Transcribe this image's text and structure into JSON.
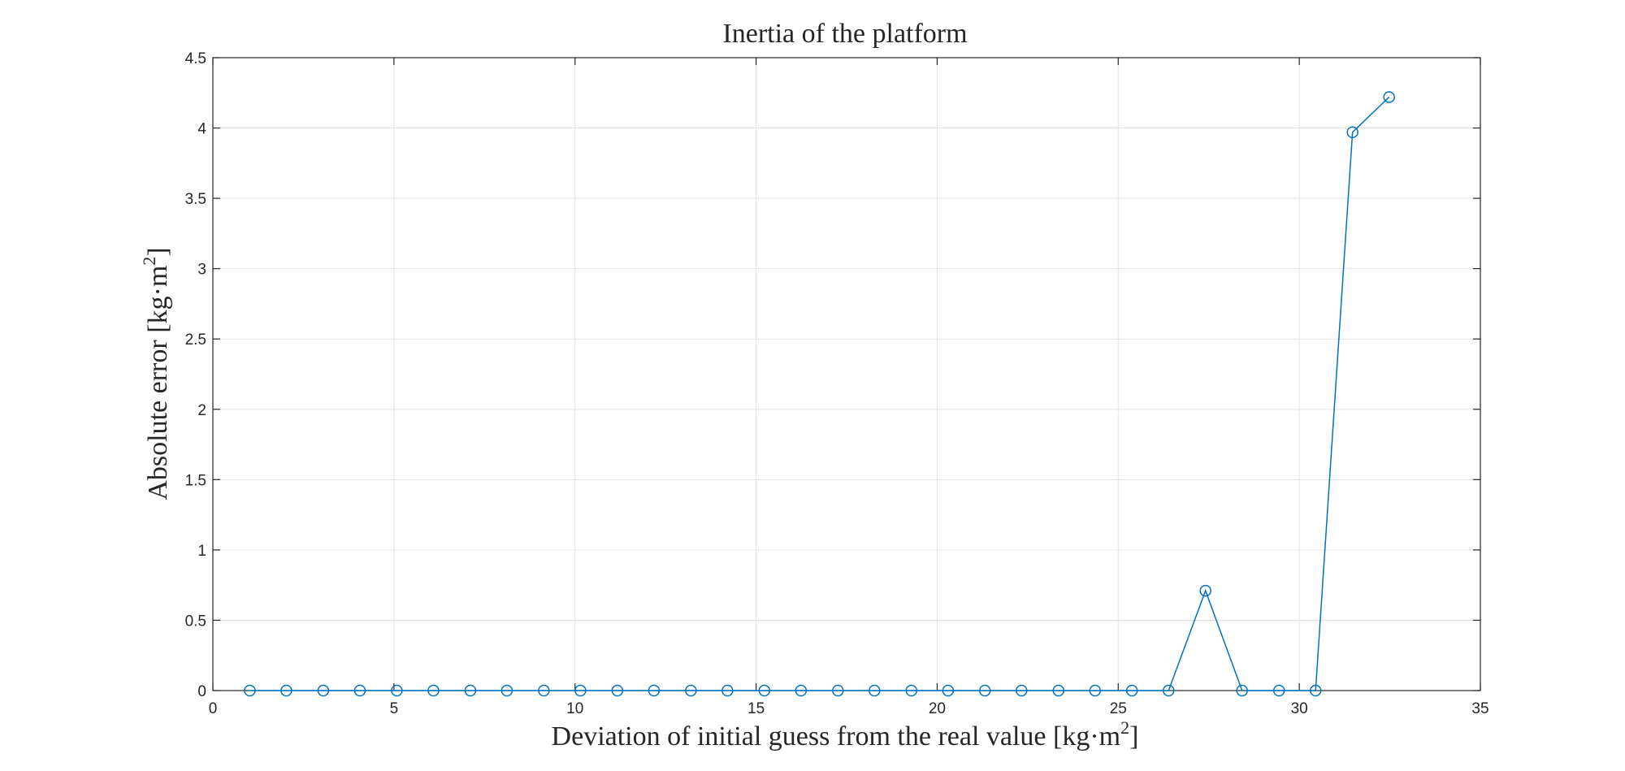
{
  "chart_data": {
    "type": "line",
    "title": "Inertia of the platform",
    "xlabel_main": "Deviation of initial guess from the real value [kg·m",
    "xlabel_sup": "2",
    "xlabel_end": "]",
    "ylabel_main": "Absolute error [kg·m",
    "ylabel_sup": "2",
    "ylabel_end": "]",
    "xlim": [
      0,
      35
    ],
    "ylim": [
      0,
      4.5
    ],
    "xticks": [
      0,
      5,
      10,
      15,
      20,
      25,
      30,
      35
    ],
    "yticks": [
      0,
      0.5,
      1,
      1.5,
      2,
      2.5,
      3,
      3.5,
      4,
      4.5
    ],
    "xtick_labels": [
      "0",
      "5",
      "10",
      "15",
      "20",
      "25",
      "30",
      "35"
    ],
    "ytick_labels": [
      "0",
      "0.5",
      "1",
      "1.5",
      "2",
      "2.5",
      "3",
      "3.5",
      "4",
      "4.5"
    ],
    "grid": true,
    "series": [
      {
        "color": "#0072BD",
        "marker": "circle",
        "x": [
          1.02,
          2.03,
          3.05,
          4.06,
          5.08,
          6.09,
          7.11,
          8.12,
          9.14,
          10.15,
          11.17,
          12.18,
          13.2,
          14.21,
          15.23,
          16.24,
          17.26,
          18.27,
          19.29,
          20.3,
          21.32,
          22.33,
          23.35,
          24.36,
          25.38,
          26.39,
          27.41,
          28.42,
          29.44,
          30.45,
          31.47,
          32.48
        ],
        "y": [
          0,
          0,
          0,
          0,
          0,
          0,
          0,
          0,
          0,
          0,
          0,
          0,
          0,
          0,
          0,
          0,
          0,
          0,
          0,
          0,
          0,
          0,
          0,
          0,
          0,
          0,
          0.71,
          0,
          0,
          0,
          3.97,
          4.22
        ]
      }
    ]
  }
}
